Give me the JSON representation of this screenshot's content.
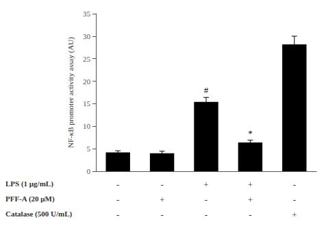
{
  "chart_data": {
    "type": "bar",
    "categories": [
      null,
      null,
      null,
      null,
      null
    ],
    "values": [
      4.2,
      4.0,
      15.4,
      6.4,
      28.2
    ],
    "errors": [
      0.35,
      0.45,
      1.0,
      0.5,
      1.8
    ],
    "color": "#000000",
    "ylabel": "NF-κB promoter activity assay (AU)",
    "ylim": [
      0,
      35
    ],
    "yticks": [
      0,
      5,
      10,
      15,
      20,
      25,
      30,
      35
    ],
    "grid": false,
    "annotations": [
      {
        "index": 2,
        "text": "#"
      },
      {
        "index": 3,
        "text": "*"
      }
    ],
    "rows": [
      {
        "label": "LPS (1 μg/mL)",
        "signs": [
          "-",
          "-",
          "+",
          "+",
          "-"
        ]
      },
      {
        "label": "PFF-A (20 μM)",
        "signs": [
          "-",
          "+",
          "-",
          "+",
          "-"
        ]
      },
      {
        "label": "Catalase (500 U/mL)",
        "signs": [
          "-",
          "-",
          "-",
          "-",
          "+"
        ]
      }
    ]
  }
}
